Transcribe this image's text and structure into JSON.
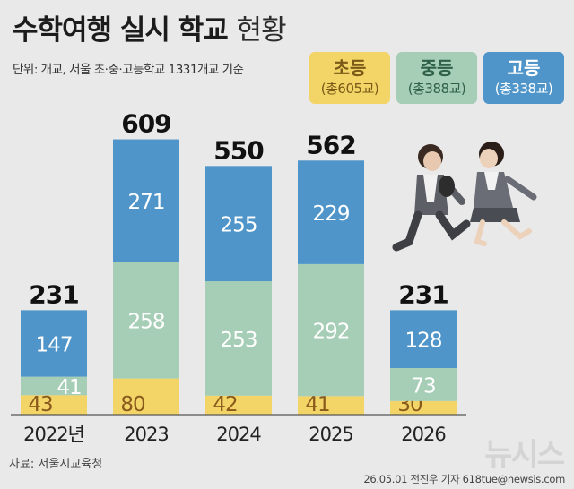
{
  "header": {
    "title_bold": "수학여행 실시 학교",
    "title_light": "현황",
    "unit_note": "단위: 개교, 서울 초·중·고등학교 1331개교 기준"
  },
  "legend": [
    {
      "name": "초등",
      "total": "(총605교)",
      "color": "#f2d467",
      "text_color": "#7a5a16"
    },
    {
      "name": "중등",
      "total": "(총388교)",
      "color": "#a6cdb6",
      "text_color": "#2f6148"
    },
    {
      "name": "고등",
      "total": "(총338교)",
      "color": "#4f95c9",
      "text_color": "#ffffff"
    }
  ],
  "chart_data": {
    "type": "bar",
    "stacked": true,
    "categories": [
      "2022년",
      "2023",
      "2024",
      "2025",
      "2026"
    ],
    "series": [
      {
        "name": "초등",
        "values": [
          43,
          80,
          42,
          41,
          30
        ],
        "color": "#f2d467",
        "label_color": "#8a5a1c"
      },
      {
        "name": "중등",
        "values": [
          41,
          258,
          253,
          292,
          73
        ],
        "color": "#a6cdb6",
        "label_color": "#ffffff"
      },
      {
        "name": "고등",
        "values": [
          147,
          271,
          255,
          229,
          128
        ],
        "color": "#4f95c9",
        "label_color": "#ffffff"
      }
    ],
    "totals": [
      231,
      609,
      550,
      562,
      231
    ],
    "ylim": [
      0,
      620
    ]
  },
  "footer": {
    "source": "자료: 서울시교육청",
    "credit": "26.05.01 전진우 기자 618tue@newsis.com",
    "logo": "뉴시스"
  }
}
